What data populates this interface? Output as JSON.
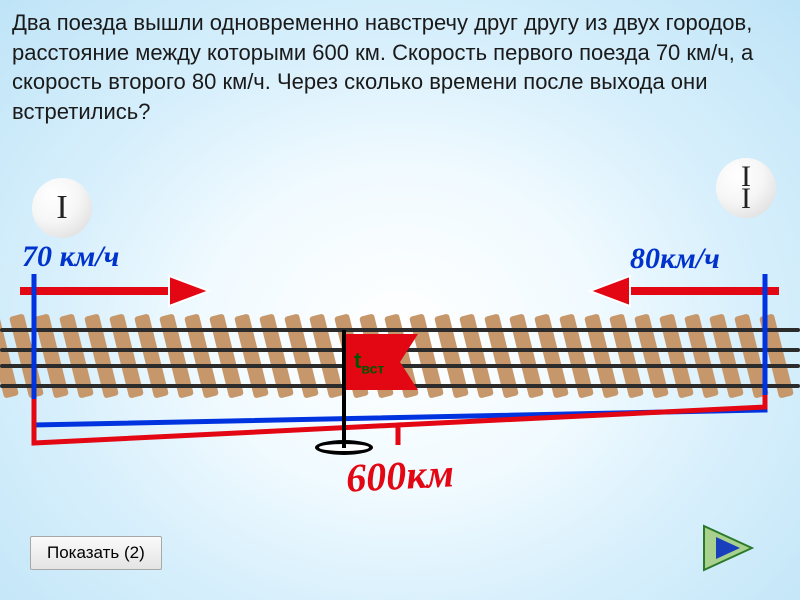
{
  "problem_text": "Два поезда вышли одновременно навстречу друг другу из двух городов, расстояние между которыми 600 км. Скорость первого поезда 70 км/ч, а скорость второго 80 км/ч. Через сколько времени после выхода они встретились?",
  "train1": {
    "label": "I",
    "speed_text": "70 км/ч",
    "color": "#0033cc"
  },
  "train2": {
    "label_line1": "I",
    "label_line2": "I",
    "speed_text": "80км/ч",
    "color": "#0033cc"
  },
  "flag": {
    "t_label": "t",
    "sub_label": "вст",
    "fill": "#e30613"
  },
  "distance": {
    "text": "600км",
    "color": "#e30613"
  },
  "bracket_blue_color": "#0033e0",
  "bracket_red_color": "#e30613",
  "arrow_color": "#e30613",
  "track": {
    "tie_color": "#c6976a",
    "rail_y": [
      18,
      38,
      54,
      74
    ],
    "tie_count": 32,
    "tie_spacing": 25,
    "tie_start": -6
  },
  "controls": {
    "show_label": "Показать (2)"
  },
  "play_button": {
    "fill": "#a7d18c",
    "stroke": "#2a7a2a",
    "inner": "#1a3fbd"
  }
}
